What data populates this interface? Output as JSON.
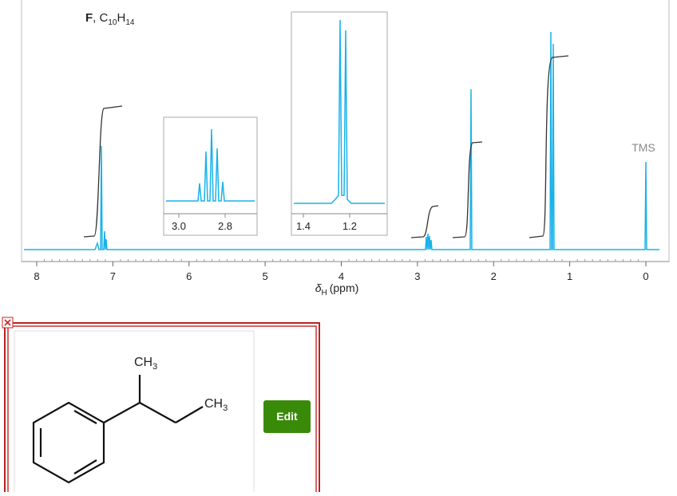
{
  "spectrum": {
    "compound": "F",
    "separator": ", ",
    "formula": [
      {
        "text": "C",
        "sub": "10"
      },
      {
        "text": "H",
        "sub": "14"
      }
    ],
    "x_axis": {
      "symbol": "δ",
      "subscript": "H",
      "unit": "(ppm)",
      "ticks": [
        "8",
        "7",
        "6",
        "5",
        "4",
        "3",
        "2",
        "1",
        "0"
      ]
    },
    "reference_label": "TMS",
    "insets": [
      {
        "ticks": [
          "3.0",
          "2.8"
        ]
      },
      {
        "ticks": [
          "1.4",
          "1.2"
        ]
      }
    ]
  },
  "structure": {
    "labels": [
      {
        "text": "CH",
        "sub": "3"
      },
      {
        "text": "CH",
        "sub": "3"
      }
    ]
  },
  "edit_button": "Edit"
}
